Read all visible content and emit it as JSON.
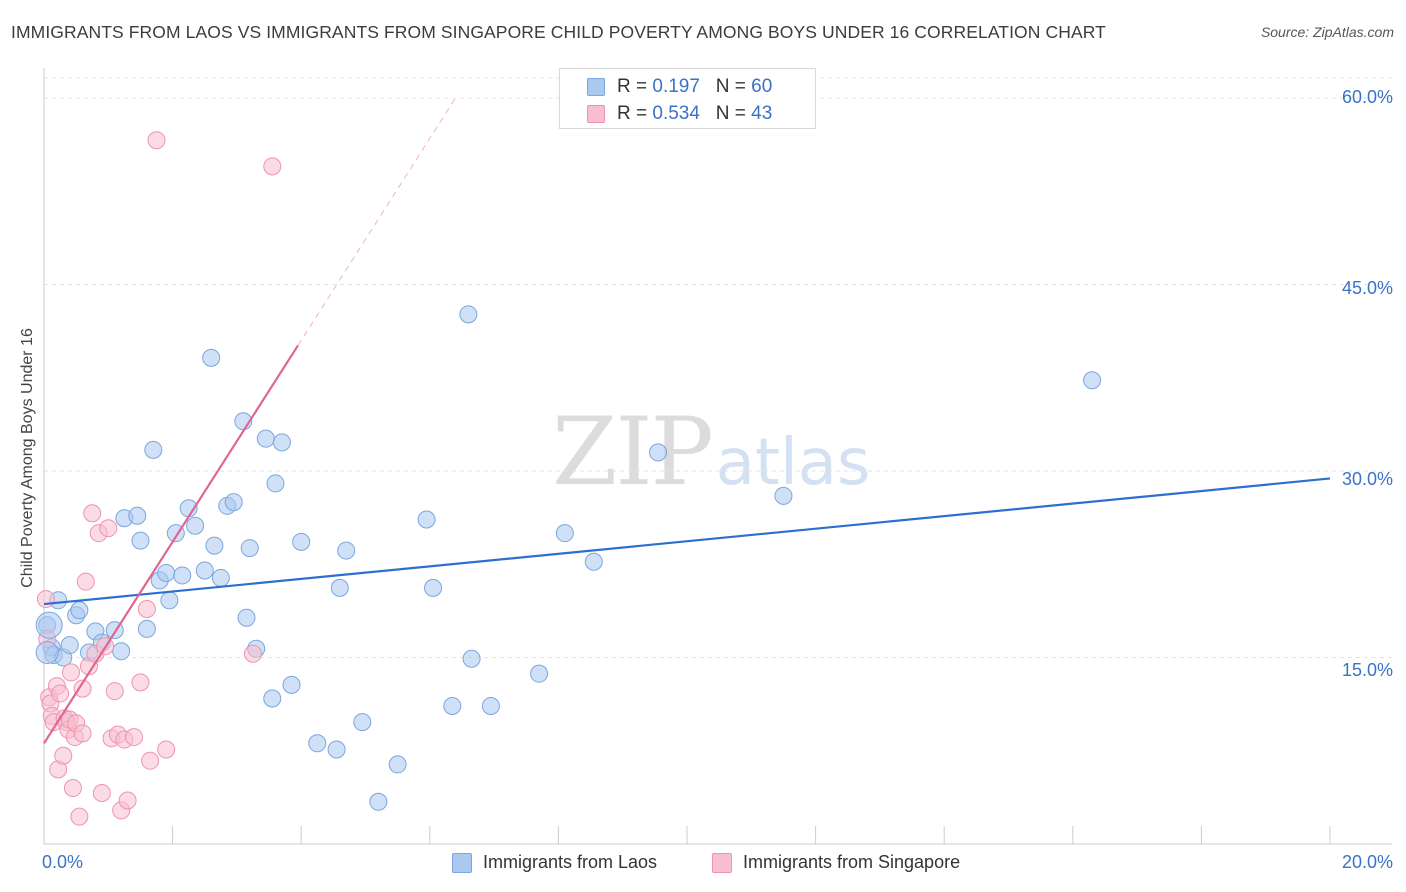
{
  "title": "IMMIGRANTS FROM LAOS VS IMMIGRANTS FROM SINGAPORE CHILD POVERTY AMONG BOYS UNDER 16 CORRELATION CHART",
  "source": "Source: ZipAtlas.com",
  "watermark": {
    "zip": "ZIP",
    "atlas": "atlas"
  },
  "legend_top": [
    {
      "r_label": "R = ",
      "r_value": "0.197",
      "n_label": "N = ",
      "n_value": "60",
      "color": "#aac8f0",
      "border": "#7aa6df"
    },
    {
      "r_label": "R = ",
      "r_value": "0.534",
      "n_label": "N = ",
      "n_value": "43",
      "color": "#f7bfd0",
      "border": "#ee93b1"
    }
  ],
  "legend_bottom": [
    {
      "label": "Immigrants from Laos",
      "color": "#aac8f0",
      "border": "#7aa6df"
    },
    {
      "label": "Immigrants from Singapore",
      "color": "#f7bfd0",
      "border": "#ee93b1"
    }
  ],
  "chart_data": {
    "type": "scatter",
    "title": "IMMIGRANTS FROM LAOS VS IMMIGRANTS FROM SINGAPORE CHILD POVERTY AMONG BOYS UNDER 16 CORRELATION CHART",
    "xlabel": "",
    "ylabel": "Child Poverty Among Boys Under 16",
    "xlim": [
      0,
      20
    ],
    "ylim": [
      0,
      60
    ],
    "x_tick_labels": [
      {
        "value": 0,
        "label": "0.0%"
      },
      {
        "value": 20,
        "label": "20.0%"
      }
    ],
    "y_tick_labels": [
      {
        "value": 15,
        "label": "15.0%"
      },
      {
        "value": 30,
        "label": "30.0%"
      },
      {
        "value": 45,
        "label": "45.0%"
      },
      {
        "value": 60,
        "label": "60.0%"
      }
    ],
    "grid": true,
    "series": [
      {
        "name": "Immigrants from Laos",
        "color": "#aac8f0",
        "edge": "#7aa6df",
        "trend": {
          "x": [
            0,
            20
          ],
          "y": [
            19.3,
            29.4
          ],
          "color": "#2b6fcf",
          "dashed_extension": false
        },
        "points": [
          [
            0.05,
            17.6
          ],
          [
            0.12,
            15.8
          ],
          [
            0.15,
            15.2
          ],
          [
            0.22,
            19.6
          ],
          [
            0.3,
            15.0
          ],
          [
            0.4,
            16.0
          ],
          [
            0.5,
            18.4
          ],
          [
            0.55,
            18.8
          ],
          [
            0.7,
            15.4
          ],
          [
            0.8,
            17.1
          ],
          [
            0.9,
            16.2
          ],
          [
            1.1,
            17.2
          ],
          [
            1.2,
            15.5
          ],
          [
            1.25,
            26.2
          ],
          [
            1.45,
            26.4
          ],
          [
            1.5,
            24.4
          ],
          [
            1.6,
            17.3
          ],
          [
            1.7,
            31.7
          ],
          [
            1.8,
            21.2
          ],
          [
            1.9,
            21.8
          ],
          [
            1.95,
            19.6
          ],
          [
            2.05,
            25.0
          ],
          [
            2.15,
            21.6
          ],
          [
            2.25,
            27.0
          ],
          [
            2.35,
            25.6
          ],
          [
            2.5,
            22.0
          ],
          [
            2.6,
            39.1
          ],
          [
            2.65,
            24.0
          ],
          [
            2.75,
            21.4
          ],
          [
            2.85,
            27.2
          ],
          [
            2.95,
            27.5
          ],
          [
            3.1,
            34.0
          ],
          [
            3.15,
            18.2
          ],
          [
            3.2,
            23.8
          ],
          [
            3.3,
            15.7
          ],
          [
            3.45,
            32.6
          ],
          [
            3.55,
            11.7
          ],
          [
            3.6,
            29.0
          ],
          [
            3.7,
            32.3
          ],
          [
            3.85,
            12.8
          ],
          [
            4.0,
            24.3
          ],
          [
            4.25,
            8.1
          ],
          [
            4.55,
            7.6
          ],
          [
            4.6,
            20.6
          ],
          [
            4.7,
            23.6
          ],
          [
            4.95,
            9.8
          ],
          [
            5.2,
            3.4
          ],
          [
            5.5,
            6.4
          ],
          [
            5.95,
            26.1
          ],
          [
            6.05,
            20.6
          ],
          [
            6.35,
            11.1
          ],
          [
            6.6,
            42.6
          ],
          [
            6.65,
            14.9
          ],
          [
            6.95,
            11.1
          ],
          [
            7.7,
            13.7
          ],
          [
            8.1,
            25.0
          ],
          [
            8.55,
            22.7
          ],
          [
            9.55,
            31.5
          ],
          [
            11.5,
            28.0
          ],
          [
            16.3,
            37.3
          ]
        ]
      },
      {
        "name": "Immigrants from Singapore",
        "color": "#f7bfd0",
        "edge": "#ee93b1",
        "trend": {
          "x": [
            0,
            3.95
          ],
          "y": [
            8.1,
            40.1
          ],
          "color": "#e0668f",
          "dashed_extension": true,
          "dashed_x": [
            3.95,
            6.4
          ],
          "dashed_y": [
            40.1,
            60.0
          ]
        },
        "points": [
          [
            0.03,
            19.7
          ],
          [
            0.05,
            16.5
          ],
          [
            0.08,
            11.8
          ],
          [
            0.1,
            11.3
          ],
          [
            0.12,
            10.3
          ],
          [
            0.15,
            9.8
          ],
          [
            0.2,
            12.7
          ],
          [
            0.22,
            6.0
          ],
          [
            0.25,
            12.1
          ],
          [
            0.3,
            7.1
          ],
          [
            0.32,
            10.1
          ],
          [
            0.35,
            9.8
          ],
          [
            0.38,
            9.2
          ],
          [
            0.4,
            10.0
          ],
          [
            0.42,
            13.8
          ],
          [
            0.45,
            4.5
          ],
          [
            0.48,
            8.6
          ],
          [
            0.5,
            9.7
          ],
          [
            0.55,
            2.2
          ],
          [
            0.6,
            12.5
          ],
          [
            0.65,
            21.1
          ],
          [
            0.7,
            14.3
          ],
          [
            0.75,
            26.6
          ],
          [
            0.8,
            15.3
          ],
          [
            0.85,
            25.0
          ],
          [
            0.9,
            4.1
          ],
          [
            0.95,
            15.9
          ],
          [
            1.0,
            25.4
          ],
          [
            1.05,
            8.5
          ],
          [
            1.1,
            12.3
          ],
          [
            1.15,
            8.8
          ],
          [
            1.2,
            2.7
          ],
          [
            1.25,
            8.4
          ],
          [
            1.3,
            3.5
          ],
          [
            1.4,
            8.6
          ],
          [
            1.5,
            13.0
          ],
          [
            1.6,
            18.9
          ],
          [
            1.65,
            6.7
          ],
          [
            1.75,
            56.6
          ],
          [
            1.9,
            7.6
          ],
          [
            3.25,
            15.3
          ],
          [
            3.55,
            54.5
          ],
          [
            0.6,
            8.9
          ]
        ]
      }
    ],
    "legend": [
      {
        "series": "Immigrants from Laos",
        "R": 0.197,
        "N": 60
      },
      {
        "series": "Immigrants from Singapore",
        "R": 0.534,
        "N": 43
      }
    ]
  }
}
